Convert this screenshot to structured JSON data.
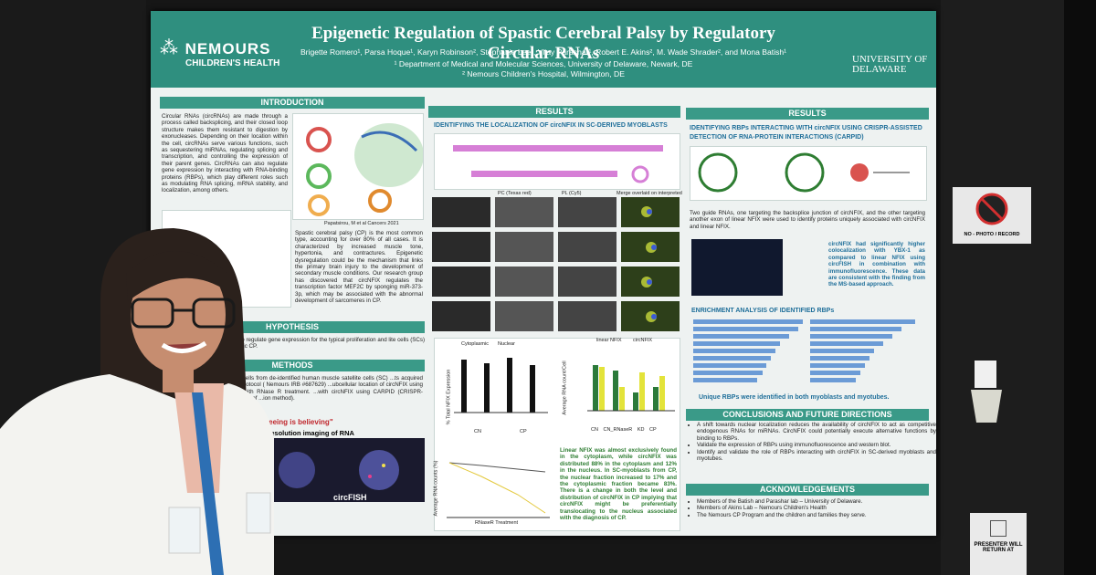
{
  "poster": {
    "logo_left": "NEMOURS",
    "logo_left_sub": "CHILDREN'S HEALTH",
    "title": "Epigenetic Regulation of Spastic Cerebral Palsy by Regulatory Circular RNAs",
    "authors": "Brigette Romero¹, Parsa Hoque¹, Karyn Robinson², Stephanie Lee², Vijay Parashar¹, Robert E. Akins², M. Wade Shrader², and Mona Batish¹",
    "affiliations": [
      "¹ Department of Medical and Molecular Sciences, University of Delaware, Newark, DE",
      "² Nemours Children's Hospital, Wilmington, DE"
    ],
    "logo_right": "UNIVERSITY OF DELAWARE",
    "introduction": {
      "heading": "INTRODUCTION",
      "text1": "Circular RNAs (circRNAs) are made through a process called backsplicing, and their closed loop structure makes them resistant to digestion by exonucleases. Depending on their location within the cell, circRNAs serve various functions, such as sequestering miRNAs, regulating splicing and transcription, and controlling the expression of their parent genes. CircRNAs can also regulate gene expression by interacting with RNA-binding proteins (RBPs), which play different roles such as modulating RNA splicing, mRNA stability, and localization, among others.",
      "caption": "Papatsirou, M et al Cancers 2021",
      "text2": "Spastic cerebral palsy (CP) is the most common type, accounting for over 80% of all cases. It is characterized by increased muscle tone, hypertonia, and contractures. Epigenetic dysregulation could be the mechanism that links the primary brain injury to the development of secondary muscle conditions. Our research group has discovered that circNFIX regulates the transcription factor MEF2C by sponging miR-373-3p, which may be associated with the abnormal development of sarcomeres in CP."
    },
    "hypothesis": {
      "heading": "HYPOTHESIS",
      "text": "RBPs to regulate gene expression for the typical proliferation and lite cells (SCs) in spastic CP."
    },
    "methods": {
      "heading": "METHODS",
      "text": "using isolated cells from de-identified human muscle satellite cells (SC) ...ts acquired under an IRB protocol ( Nemours IRB #687629) ...ubcellular location of circNFIX using circFISH. ...A with RNase R treatment. ...with circNFIX using CARPID (CRISPR-assisted detection of ...ion method).",
      "quote": "\"Seeing is believing\"",
      "figure_title": "le resolution imaging of RNA",
      "figure_label": "circFISH"
    },
    "results_middle": {
      "heading": "RESULTS",
      "subheading": "IDENTIFYING THE LOCALIZATION OF circNFIX IN SC-DERIVED MYOBLASTS",
      "columns": [
        "PC (Texas red)",
        "PL (Cy5)",
        "Merge overlaid on interpreted"
      ],
      "chart1_ylabel": "% Total NFIX Expression",
      "chart1_legend": [
        "Cytoplasmic",
        "Nuclear"
      ],
      "chart1_groups": [
        "CN",
        "CP"
      ],
      "chart2_ylabel": "Average RNA count/Cell",
      "chart2_legend": [
        "linear NFIX",
        "circNFIX"
      ],
      "chart2_categories": [
        "CN",
        "CN_RNaseR",
        "KD",
        "CP"
      ],
      "chart3_ylabel": "Average RNA counts (%)",
      "chart3_xlabel": "RNaseR Treatment",
      "text": "Linear NFIX was almost exclusively found in the cytoplasm, while circNFIX was distributed 88% in the cytoplasm and 12% in the nucleus. In SC-myoblasts from CP, the nuclear fraction increased to 17% and the cytoplasmic fraction became 83%. There is a change in both the level and distribution of circNFIX in CP implying that circNFIX might be preferentially translocating to the nucleus associated with the diagnosis of CP."
    },
    "results_right": {
      "heading": "RESULTS",
      "subheading": "IDENTIFYING RBPs INTERACTING WITH circNFIX USING CRISPR-ASSISTED DETECTION OF RNA-PROTEIN INTERACTIONS (CARPID)",
      "text1": "Two guide RNAs, one targeting the backsplice junction of circNFIX, and the other targeting another exon of linear NFIX were used to identify proteins uniquely associated with circNFIX and linear NFIX.",
      "text2": "circNFIX had significantly higher colocalization with YBX-1 as compared to linear NFIX using circFISH in combination with immunofluorescence. These data are consistent with the finding from the MS-based approach.",
      "enrichment_heading": "ENRICHMENT ANALYSIS OF IDENTIFIED RBPs",
      "enrichment_caption": "Unique RBPs were identified in both myoblasts and myotubes."
    },
    "conclusions": {
      "heading": "CONCLUSIONS AND FUTURE DIRECTIONS",
      "items": [
        "A shift towards nuclear localization reduces the availability of circNFIX to act as competitive endogenous RNAs for miRNAs. CircNFIX could potentially execute alternative functions by binding to RBPs.",
        "Validate the expression of RBPs using immunofluorescence and western blot.",
        "Identify and validate the role of RBPs interacting with circNFIX in SC-derived myoblasts and myotubes."
      ]
    },
    "acknowledgements": {
      "heading": "ACKNOWLEDGEMENTS",
      "items": [
        "Members of the Batish and Parashar lab – University of Delaware.",
        "Members of Akins Lab – Nemours Children's Health",
        "The Nemours CP Program and the children and families they serve."
      ]
    }
  },
  "signs": {
    "no_photo": "NO - PHOTO / RECORD",
    "presenter": "PRESENTER WILL RETURN AT"
  }
}
